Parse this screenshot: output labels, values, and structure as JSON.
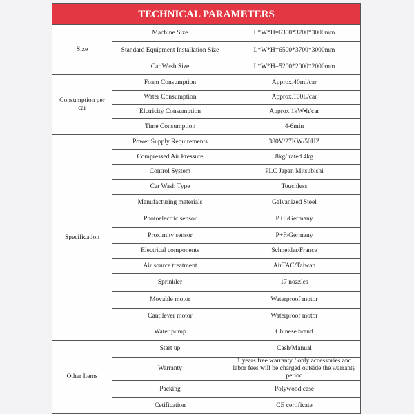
{
  "title": "TECHNICAL PARAMETERS",
  "groups": [
    {
      "name": "Size",
      "rows": [
        {
          "label": "Machine Size",
          "value": "L*W*H=6300*3700*3000mm"
        },
        {
          "label": "Standard Equipment Installation Size",
          "value": "L*W*H=6500*3700*3000mm"
        },
        {
          "label": "Car Wash Size",
          "value": "L*W*H=5200*2000*2000mm"
        }
      ]
    },
    {
      "name": "Consumption per car",
      "rows": [
        {
          "label": "Foam Consumption",
          "value": "Approx.40ml/car"
        },
        {
          "label": "Water Consumption",
          "value": "Approx.100L/car"
        },
        {
          "label": "Elctricity Consumption",
          "value": "Approx.1kW•h/car"
        },
        {
          "label": "Time Consumption",
          "value": "4-6min"
        }
      ]
    },
    {
      "name": "Specification",
      "rows": [
        {
          "label": "Power Supply Requirements",
          "value": "380V/27KW/50HZ"
        },
        {
          "label": "Compressed Air Pressure",
          "value": "8kg/ rated 4kg"
        },
        {
          "label": "Control System",
          "value": "PLC Japan Mitsubishi"
        },
        {
          "label": "Car Wash Type",
          "value": "Touchless"
        },
        {
          "label": "Manufacturing materials",
          "value": "Galvanized Steel"
        },
        {
          "label": "Photoelectric sensor",
          "value": "P+F/Germany"
        },
        {
          "label": "Proximity sensor",
          "value": "P+F/Germany"
        },
        {
          "label": "Electrical components",
          "value": "Schneider/France"
        },
        {
          "label": "Air source treatment",
          "value": "AirTAC/Taiwan"
        },
        {
          "label": "Sprinkler",
          "value": "17 nozzles"
        },
        {
          "label": "Movable motor",
          "value": "Waterproof motor"
        },
        {
          "label": "Cantilever motor",
          "value": "Waterproof motor"
        },
        {
          "label": "Water pump",
          "value": "Chinese brand"
        }
      ]
    },
    {
      "name": "Other Items",
      "rows": [
        {
          "label": "Start up",
          "value": "Cash/Manual"
        },
        {
          "label": "Warranty",
          "value": "1 years free warranty / only accessories and labor fees will be charged outside the warranty period"
        },
        {
          "label": "Packing",
          "value": "Polywood case"
        },
        {
          "label": "Cetification",
          "value": "CE certificate"
        }
      ]
    }
  ]
}
